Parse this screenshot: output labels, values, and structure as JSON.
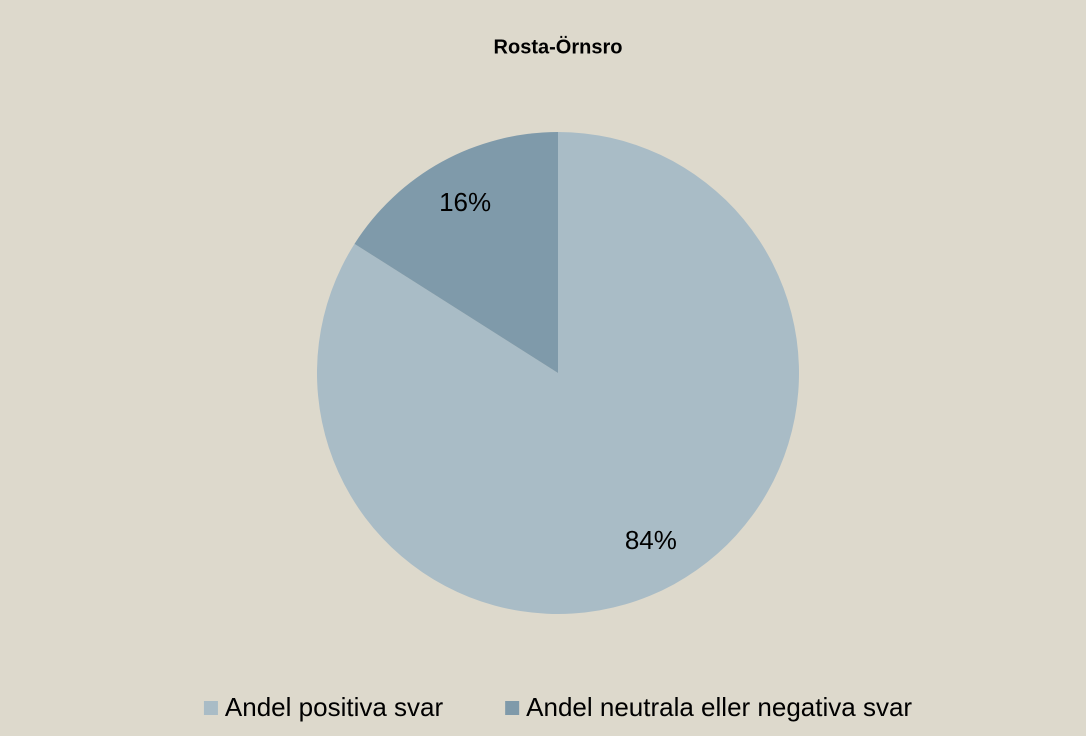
{
  "chart_data": {
    "type": "pie",
    "title": "Rosta-Örnsro",
    "categories": [
      "Andel positiva svar",
      "Andel neutrala eller negativa svar"
    ],
    "values": [
      84,
      16
    ],
    "value_labels": [
      "84%",
      "16%"
    ],
    "colors": [
      "#a9bcc6",
      "#7f9aaa"
    ],
    "legend": "bottom"
  }
}
